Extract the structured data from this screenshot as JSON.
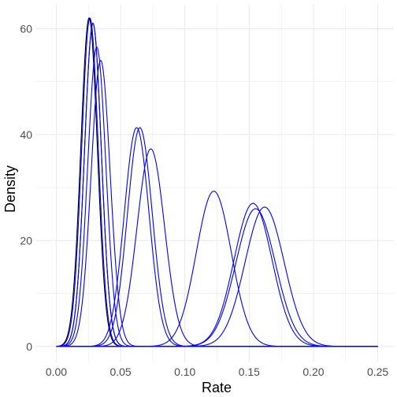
{
  "chart_data": {
    "type": "line",
    "xlabel": "Rate",
    "ylabel": "Density",
    "xlim": [
      -0.0156,
      0.2625
    ],
    "ylim": [
      -3.0,
      64.5
    ],
    "x_ticks": [
      0.0,
      0.05,
      0.1,
      0.15,
      0.2,
      0.25
    ],
    "x_tick_labels": [
      "0.00",
      "0.05",
      "0.10",
      "0.15",
      "0.20",
      "0.25"
    ],
    "y_ticks": [
      0,
      20,
      40,
      60
    ],
    "y_tick_labels": [
      "0",
      "20",
      "40",
      "60"
    ],
    "x_range": [
      0.0,
      0.25
    ],
    "grid": true,
    "legend": "none",
    "panel_background": "#ffffff",
    "grid_color": "#ebebeb",
    "series_colors": {
      "black": "#000000",
      "blue": "#0000ff"
    },
    "series": [
      {
        "peak_x": 0.0255,
        "peak_density": 62.0,
        "color": "black"
      },
      {
        "peak_x": 0.0285,
        "peak_density": 61.0,
        "color": "black"
      },
      {
        "peak_x": 0.0262,
        "peak_density": 62.0,
        "color": "blue"
      },
      {
        "peak_x": 0.0285,
        "peak_density": 61.0,
        "color": "blue"
      },
      {
        "peak_x": 0.0315,
        "peak_density": 56.5,
        "color": "blue"
      },
      {
        "peak_x": 0.0345,
        "peak_density": 54.0,
        "color": "blue"
      },
      {
        "peak_x": 0.0625,
        "peak_density": 41.3,
        "color": "blue"
      },
      {
        "peak_x": 0.065,
        "peak_density": 41.3,
        "color": "blue"
      },
      {
        "peak_x": 0.0735,
        "peak_density": 37.3,
        "color": "blue"
      },
      {
        "peak_x": 0.1225,
        "peak_density": 29.3,
        "color": "blue"
      },
      {
        "peak_x": 0.153,
        "peak_density": 27.0,
        "color": "blue"
      },
      {
        "peak_x": 0.155,
        "peak_density": 26.0,
        "color": "blue"
      },
      {
        "peak_x": 0.162,
        "peak_density": 26.3,
        "color": "blue"
      }
    ]
  }
}
